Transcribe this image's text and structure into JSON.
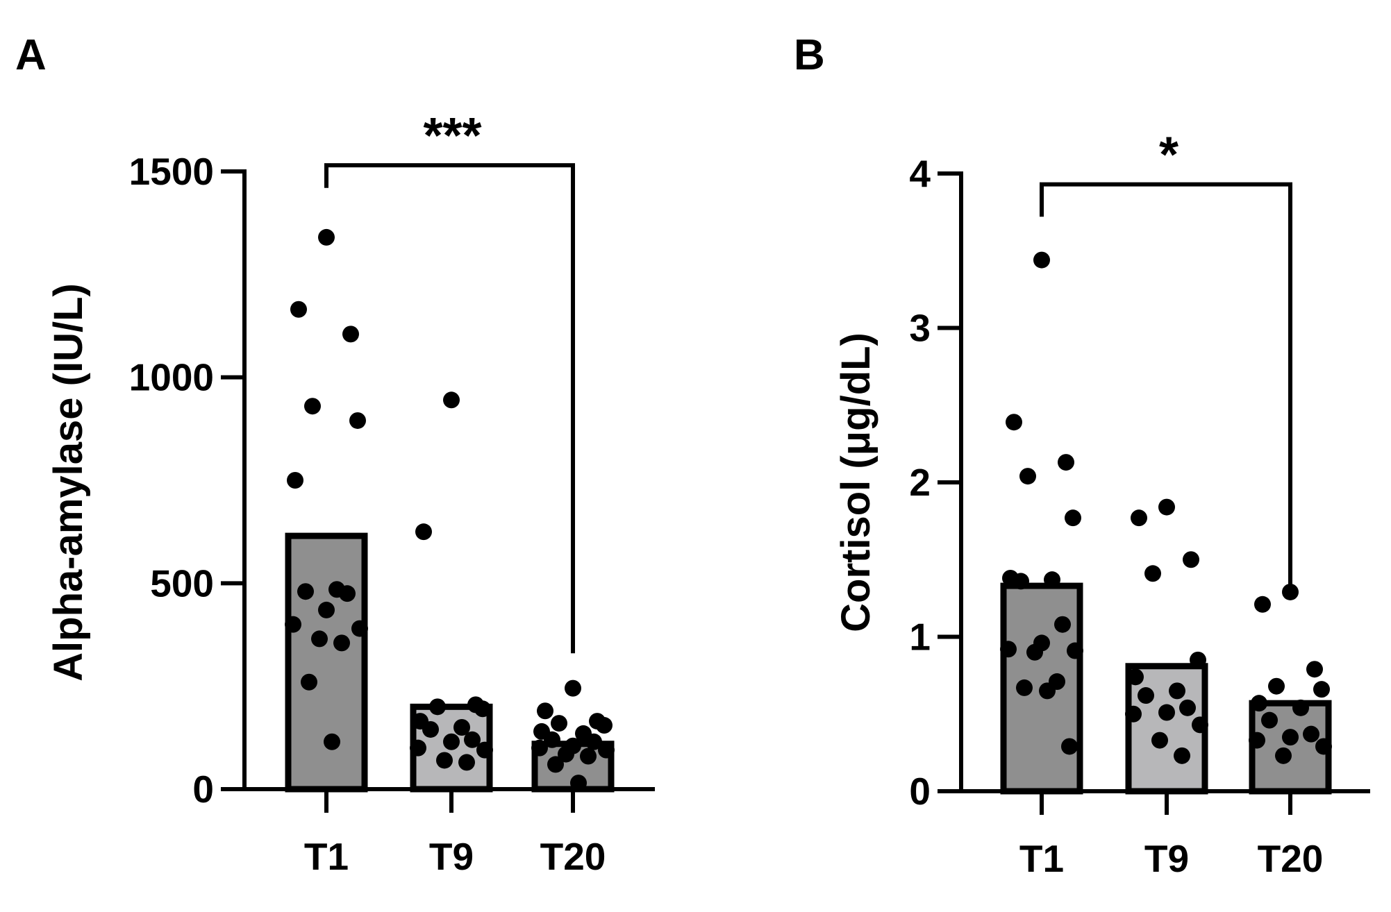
{
  "colors": {
    "axis": "#000000",
    "point": "#000000",
    "bar_dark": "#8f8f8f",
    "bar_light": "#b7b7b9",
    "bar_stroke": "#000000",
    "background": "#ffffff"
  },
  "chart_data": [
    {
      "panel": "A",
      "type": "bar",
      "ylabel": "Alpha-amylase (IU/L)",
      "ylim": [
        0,
        1500
      ],
      "yticks": [
        0,
        500,
        1000,
        1500
      ],
      "ytick_labels": [
        "0",
        "500",
        "1000",
        "1500"
      ],
      "categories": [
        "T1",
        "T9",
        "T20"
      ],
      "bar_fills": [
        "dark",
        "light",
        "dark"
      ],
      "values": [
        615,
        200,
        110
      ],
      "points": [
        [
          1340,
          1165,
          1105,
          930,
          895,
          750,
          485,
          480,
          475,
          435,
          400,
          390,
          365,
          355,
          260,
          115
        ],
        [
          945,
          625,
          205,
          200,
          195,
          165,
          150,
          145,
          120,
          115,
          100,
          95,
          70,
          65
        ],
        [
          245,
          190,
          165,
          160,
          155,
          140,
          135,
          120,
          115,
          105,
          100,
          95,
          85,
          80,
          60,
          15
        ]
      ],
      "significance": {
        "from": "T1",
        "to": "T20",
        "label": "***",
        "level": 1515,
        "drop_left": 1460,
        "drop_right": 330
      }
    },
    {
      "panel": "B",
      "type": "bar",
      "ylabel": "Cortisol (μg/dL)",
      "ylim": [
        0,
        4
      ],
      "yticks": [
        0,
        1,
        2,
        3,
        4
      ],
      "ytick_labels": [
        "0",
        "1",
        "2",
        "3",
        "4"
      ],
      "categories": [
        "T1",
        "T9",
        "T20"
      ],
      "bar_fills": [
        "dark",
        "light",
        "dark"
      ],
      "values": [
        1.33,
        0.81,
        0.57
      ],
      "points": [
        [
          3.44,
          2.39,
          2.13,
          2.04,
          1.77,
          1.38,
          1.37,
          1.36,
          1.08,
          0.96,
          0.92,
          0.91,
          0.9,
          0.71,
          0.67,
          0.65,
          0.29
        ],
        [
          1.84,
          1.77,
          1.5,
          1.41,
          0.85,
          0.74,
          0.65,
          0.62,
          0.54,
          0.51,
          0.5,
          0.43,
          0.33,
          0.23
        ],
        [
          1.29,
          1.21,
          0.79,
          0.68,
          0.66,
          0.57,
          0.54,
          0.46,
          0.37,
          0.35,
          0.33,
          0.29,
          0.23
        ]
      ],
      "significance": {
        "from": "T1",
        "to": "T20",
        "label": "*",
        "level": 3.93,
        "drop_left": 3.72,
        "drop_right": 1.28
      }
    }
  ]
}
